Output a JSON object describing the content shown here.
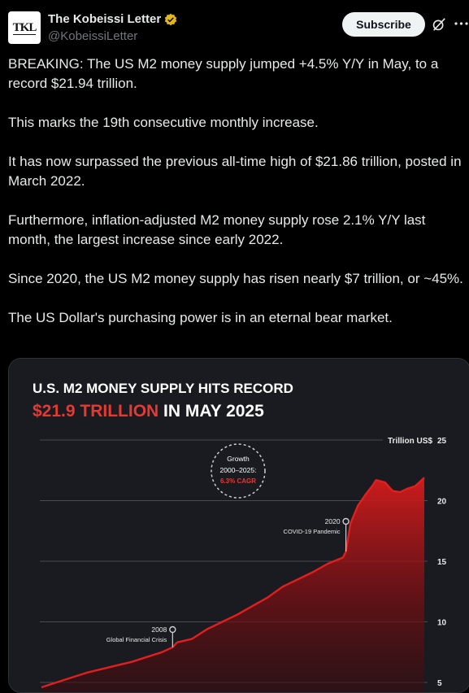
{
  "account": {
    "display_name": "The Kobeissi Letter",
    "handle": "@KobeissiLetter",
    "avatar_text": "TKL"
  },
  "actions": {
    "subscribe_label": "Subscribe",
    "grok_icon": "grok-icon",
    "more_icon": "more-options-icon"
  },
  "tweet": {
    "paragraphs": [
      "BREAKING: The US M2 money supply jumped +4.5% Y/Y in May, to a record $21.94 trillion.",
      "This marks the 19th consecutive monthly increase.",
      "It has now surpassed the previous all-time high of $21.86 trillion, posted in March 2022.",
      "Furthermore, inflation-adjusted M2 money supply rose 2.1% Y/Y last month, the largest increase since early 2022.",
      "Since 2020, the US M2 money supply has risen nearly $7 trillion, or ~45%.",
      "The US Dollar's purchasing power is in an eternal bear market."
    ]
  },
  "chart_data": {
    "type": "area",
    "title_line1": "U.S. M2 MONEY SUPPLY HITS RECORD",
    "title_highlight": "$21.9 TRILLION",
    "title_rest": " IN MAY 2025",
    "unit_label": "Trillion US$",
    "y_ticks": [
      5,
      10,
      15,
      20,
      25
    ],
    "ylim": [
      5,
      25
    ],
    "xlim": [
      2000,
      2025.4
    ],
    "grid": true,
    "colors": {
      "line": "#e0201e",
      "highlight": "#e33a33",
      "background": "#1a1b20"
    },
    "growth_badge": {
      "line1": "Growth",
      "line2": "2000–2025:",
      "line3": "6.3% CAGR"
    },
    "annotations": [
      {
        "year_label": "2008",
        "text": "Global Financial Crisis",
        "x": 2008.7
      },
      {
        "year_label": "2020",
        "text": "COVID-19 Pandemic",
        "x": 2020.2
      }
    ],
    "series": [
      {
        "x": [
          2000.0,
          2001.0,
          2002.0,
          2003.0,
          2004.0,
          2005.0,
          2006.0,
          2007.0,
          2008.0,
          2008.7,
          2009.0,
          2010.0,
          2011.0,
          2012.0,
          2013.0,
          2014.0,
          2015.0,
          2016.0,
          2017.0,
          2018.0,
          2019.0,
          2020.0,
          2020.2,
          2020.5,
          2021.0,
          2021.5,
          2022.0,
          2022.2,
          2022.8,
          2023.3,
          2023.8,
          2024.3,
          2024.8,
          2025.4
        ],
        "values": [
          4.6,
          5.0,
          5.4,
          5.8,
          6.1,
          6.4,
          6.7,
          7.1,
          7.5,
          7.9,
          8.3,
          8.6,
          9.4,
          10.0,
          10.6,
          11.3,
          12.0,
          12.9,
          13.5,
          14.1,
          14.8,
          15.3,
          15.8,
          18.1,
          19.6,
          20.5,
          21.3,
          21.7,
          21.5,
          20.8,
          20.7,
          21.0,
          21.2,
          21.9
        ]
      }
    ]
  }
}
